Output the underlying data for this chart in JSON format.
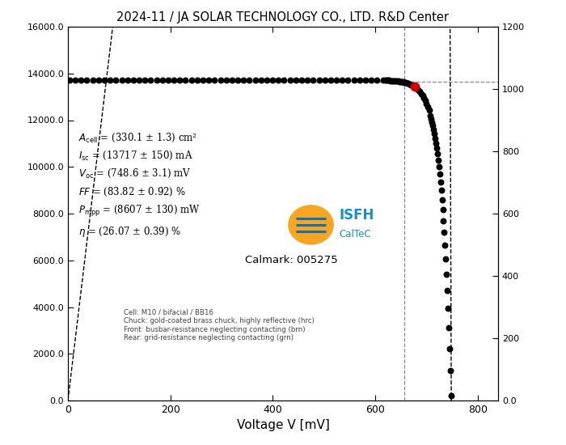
{
  "title": "2024-11 / JA SOLAR TECHNOLOGY CO., LTD. R&D Center",
  "xlabel": "Voltage V [mV]",
  "Isc": 13717,
  "Voc": 748.6,
  "Vmpp": 657,
  "Pmpp": 8607,
  "Acell": 330.1,
  "Acell_err": 1.3,
  "Isc_err": 150,
  "Voc_err": 3.1,
  "FF": 83.82,
  "FF_err": 0.92,
  "Pmpp_err": 130,
  "eta": 26.07,
  "eta_err": 0.39,
  "xlim": [
    0,
    840
  ],
  "ylim_left": [
    0,
    16000
  ],
  "ylim_right": [
    0,
    1200
  ],
  "Vt_eff": 18.5,
  "n_flat": 55,
  "n_knee": 35,
  "n_drop": 28,
  "V_flat_end": 615,
  "V_knee_end": 705,
  "bg_color": "#ffffff",
  "dot_color": "#000000",
  "red_dot_color": "#cc0000",
  "dashed_color": "#888888",
  "calmark": "Calmark: 005275",
  "cell_info_1": "Cell: M10 / bifacial / BB16",
  "cell_info_2": "Chuck: gold-coated brass chuck, highly reflective (hrc)",
  "cell_info_3": "Front: busbar-resistance neglecting contacting (brn)",
  "cell_info_4": "Rear: grid-resistance neglecting contacting (grn)",
  "isfh_color": "#1a8fc4",
  "sun_color": "#f5a623",
  "stripe_color": "#1a6fa8",
  "yticks_left": [
    0,
    2000,
    4000,
    6000,
    8000,
    10000,
    12000,
    14000,
    16000
  ],
  "ytick_labels_left": [
    "0.0",
    "2000.0",
    "4000.0",
    "6000.0",
    "8000.0",
    "10000.0",
    "12000.0",
    "14000.0",
    "16000.0"
  ],
  "yticks_right": [
    0,
    200,
    400,
    600,
    800,
    1000,
    1200
  ],
  "ytick_labels_right": [
    "0.0",
    "200",
    "400",
    "600",
    "800",
    "1000",
    "1200"
  ],
  "xticks": [
    0,
    200,
    400,
    600,
    800
  ],
  "xtick_labels": [
    "0",
    "200",
    "400",
    "600",
    "800"
  ]
}
